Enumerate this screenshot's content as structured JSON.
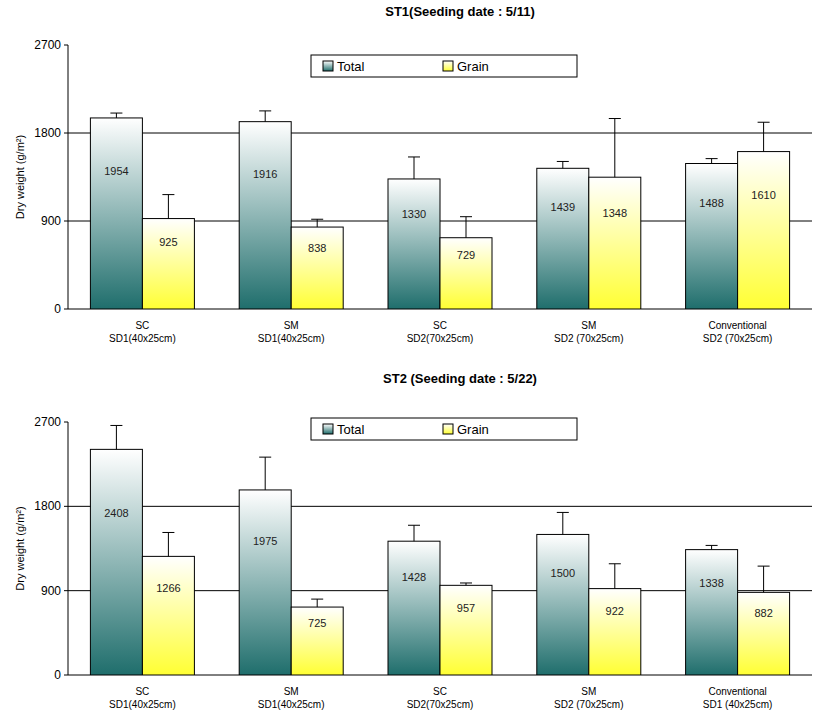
{
  "chart_data": [
    {
      "type": "bar",
      "title": "ST1(Seeding date : 5/11)",
      "y_label": "Dry weight (g/m²)",
      "categories": [
        "SC\nSD1(40x25cm)",
        "SM\nSD1(40x25cm)",
        "SC\nSD2(70x25cm)",
        "SM\nSD2 (70x25cm)",
        "Conventional\nSD2 (70x25cm)"
      ],
      "series": [
        {
          "name": "Total",
          "color": "#1f6e6c",
          "values": [
            1954,
            1916,
            1330,
            1439,
            1488
          ],
          "errors": [
            50,
            110,
            225,
            70,
            50
          ]
        },
        {
          "name": "Grain",
          "color": "#ffff33",
          "values": [
            925,
            838,
            729,
            1348,
            1610
          ],
          "errors": [
            245,
            80,
            215,
            600,
            300
          ]
        }
      ],
      "ylim": [
        0,
        2700
      ],
      "yticks": [
        0,
        900,
        1800,
        2700
      ],
      "grid": true,
      "legend": "top",
      "data_labels": true
    },
    {
      "type": "bar",
      "title": "ST2 (Seeding date : 5/22)",
      "y_label": "Dry weight (g/m²)",
      "categories": [
        "SC\nSD1(40x25cm)",
        "SM\nSD1(40x25cm)",
        "SC\nSD2(70x25cm)",
        "SM\nSD2 (70x25cm)",
        "Conventional\nSD1 (40x25cm)"
      ],
      "series": [
        {
          "name": "Total",
          "color": "#1f6e6c",
          "values": [
            2408,
            1975,
            1428,
            1500,
            1338
          ],
          "errors": [
            255,
            350,
            170,
            235,
            45
          ]
        },
        {
          "name": "Grain",
          "color": "#ffff33",
          "values": [
            1266,
            725,
            957,
            922,
            882
          ],
          "errors": [
            255,
            85,
            25,
            265,
            280
          ]
        }
      ],
      "ylim": [
        0,
        2700
      ],
      "yticks": [
        0,
        900,
        1800,
        2700
      ],
      "grid": true,
      "legend": "top",
      "data_labels": true
    }
  ]
}
